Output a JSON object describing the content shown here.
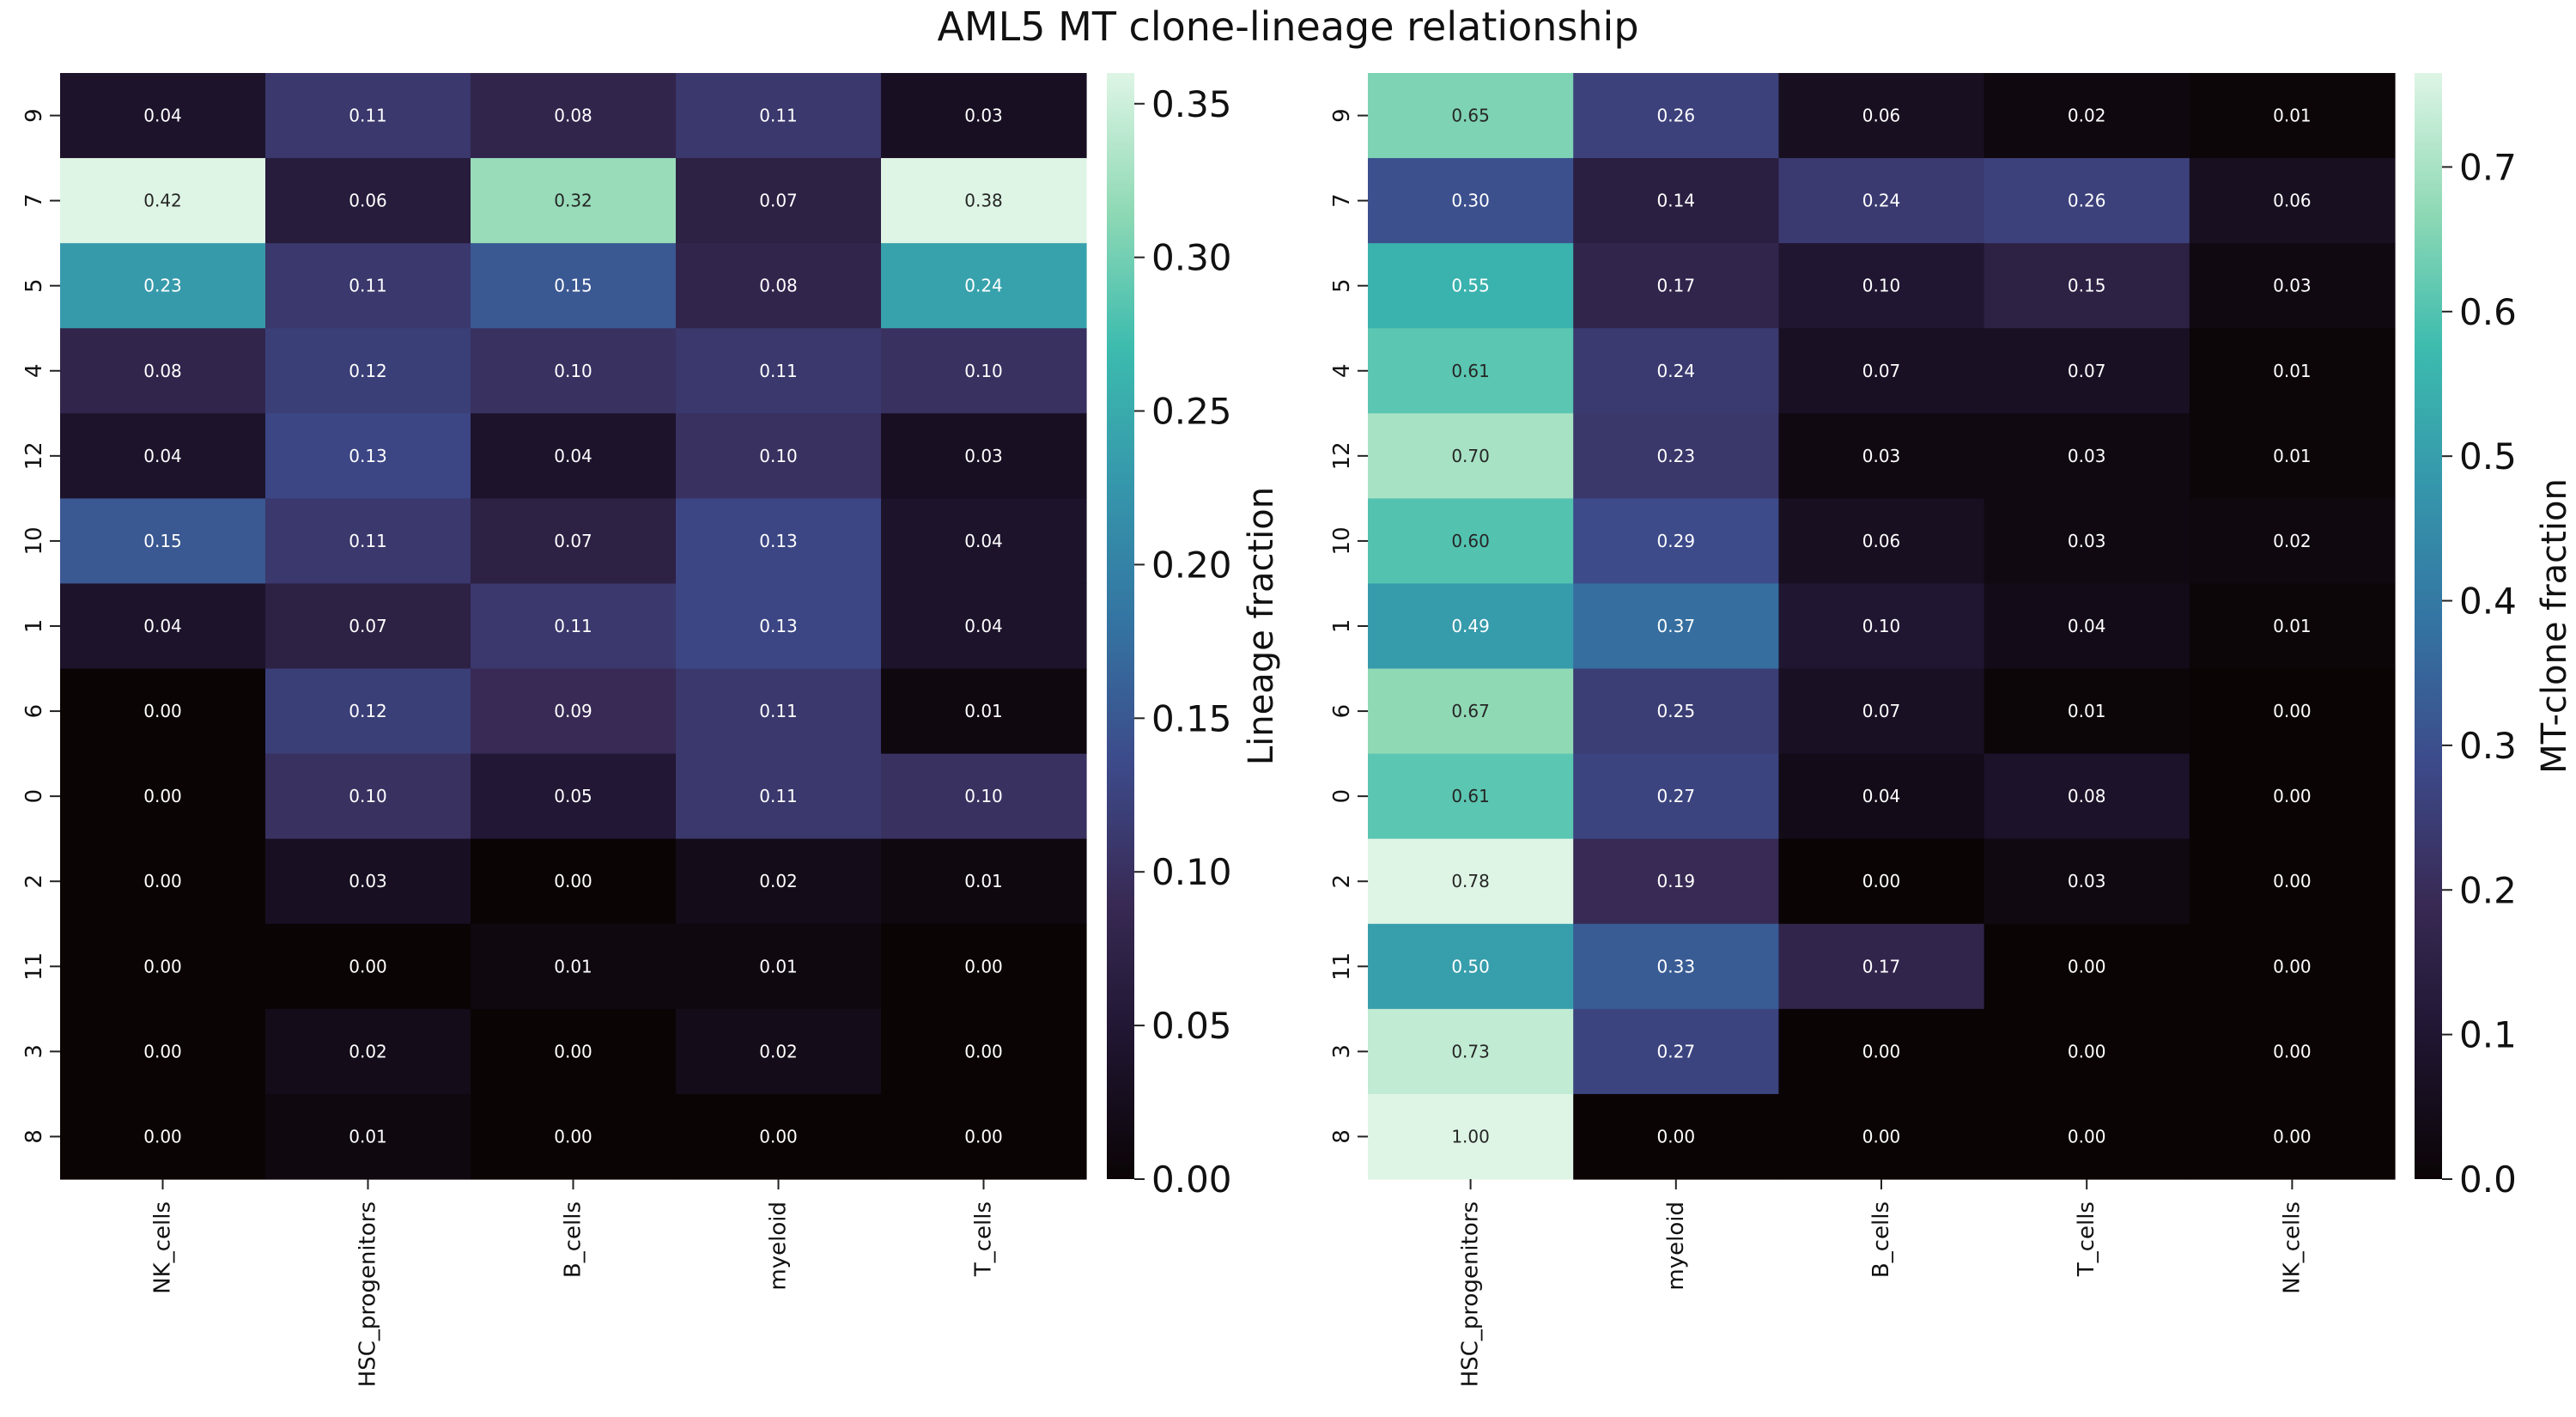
{
  "title": "AML5 MT clone-lineage relationship",
  "chart_data": [
    {
      "type": "heatmap",
      "rows": [
        "9",
        "7",
        "5",
        "4",
        "12",
        "10",
        "1",
        "6",
        "0",
        "2",
        "11",
        "3",
        "8"
      ],
      "columns": [
        "NK_cells",
        "HSC_progenitors",
        "B_cells",
        "myeloid",
        "T_cells"
      ],
      "values": [
        [
          0.04,
          0.11,
          0.08,
          0.11,
          0.03
        ],
        [
          0.42,
          0.06,
          0.32,
          0.07,
          0.38
        ],
        [
          0.23,
          0.11,
          0.15,
          0.08,
          0.24
        ],
        [
          0.08,
          0.12,
          0.1,
          0.11,
          0.1
        ],
        [
          0.04,
          0.13,
          0.04,
          0.1,
          0.03
        ],
        [
          0.15,
          0.11,
          0.07,
          0.13,
          0.04
        ],
        [
          0.04,
          0.07,
          0.11,
          0.13,
          0.04
        ],
        [
          0.0,
          0.12,
          0.09,
          0.11,
          0.01
        ],
        [
          0.0,
          0.1,
          0.05,
          0.11,
          0.1
        ],
        [
          0.0,
          0.03,
          0.0,
          0.02,
          0.01
        ],
        [
          0.0,
          0.0,
          0.01,
          0.01,
          0.0
        ],
        [
          0.0,
          0.02,
          0.0,
          0.02,
          0.0
        ],
        [
          0.0,
          0.01,
          0.0,
          0.0,
          0.0
        ]
      ],
      "colorbar": {
        "label": "Lineage fraction",
        "range": [
          0,
          0.36
        ],
        "ticks": [
          0.0,
          0.05,
          0.1,
          0.15,
          0.2,
          0.25,
          0.3,
          0.35
        ],
        "tick_labels": [
          "0.00",
          "0.05",
          "0.10",
          "0.15",
          "0.20",
          "0.25",
          "0.30",
          "0.35"
        ]
      },
      "colormap": "mako",
      "annotations": true
    },
    {
      "type": "heatmap",
      "rows": [
        "9",
        "7",
        "5",
        "4",
        "12",
        "10",
        "1",
        "6",
        "0",
        "2",
        "11",
        "3",
        "8"
      ],
      "columns": [
        "HSC_progenitors",
        "myeloid",
        "B_cells",
        "T_cells",
        "NK_cells"
      ],
      "values": [
        [
          0.65,
          0.26,
          0.06,
          0.02,
          0.01
        ],
        [
          0.3,
          0.14,
          0.24,
          0.26,
          0.06
        ],
        [
          0.55,
          0.17,
          0.1,
          0.15,
          0.03
        ],
        [
          0.61,
          0.24,
          0.07,
          0.07,
          0.01
        ],
        [
          0.7,
          0.23,
          0.03,
          0.03,
          0.01
        ],
        [
          0.6,
          0.29,
          0.06,
          0.03,
          0.02
        ],
        [
          0.49,
          0.37,
          0.1,
          0.04,
          0.01
        ],
        [
          0.67,
          0.25,
          0.07,
          0.01,
          0.0
        ],
        [
          0.61,
          0.27,
          0.04,
          0.08,
          0.0
        ],
        [
          0.78,
          0.19,
          0.0,
          0.03,
          0.0
        ],
        [
          0.5,
          0.33,
          0.17,
          0.0,
          0.0
        ],
        [
          0.73,
          0.27,
          0.0,
          0.0,
          0.0
        ],
        [
          1.0,
          0.0,
          0.0,
          0.0,
          0.0
        ]
      ],
      "colorbar": {
        "label": "MT-clone fraction",
        "range": [
          0,
          0.765
        ],
        "ticks": [
          0.0,
          0.1,
          0.2,
          0.3,
          0.4,
          0.5,
          0.6,
          0.7
        ],
        "tick_labels": [
          "0.0",
          "0.1",
          "0.2",
          "0.3",
          "0.4",
          "0.5",
          "0.6",
          "0.7"
        ]
      },
      "colormap": "mako",
      "annotations": true
    }
  ]
}
